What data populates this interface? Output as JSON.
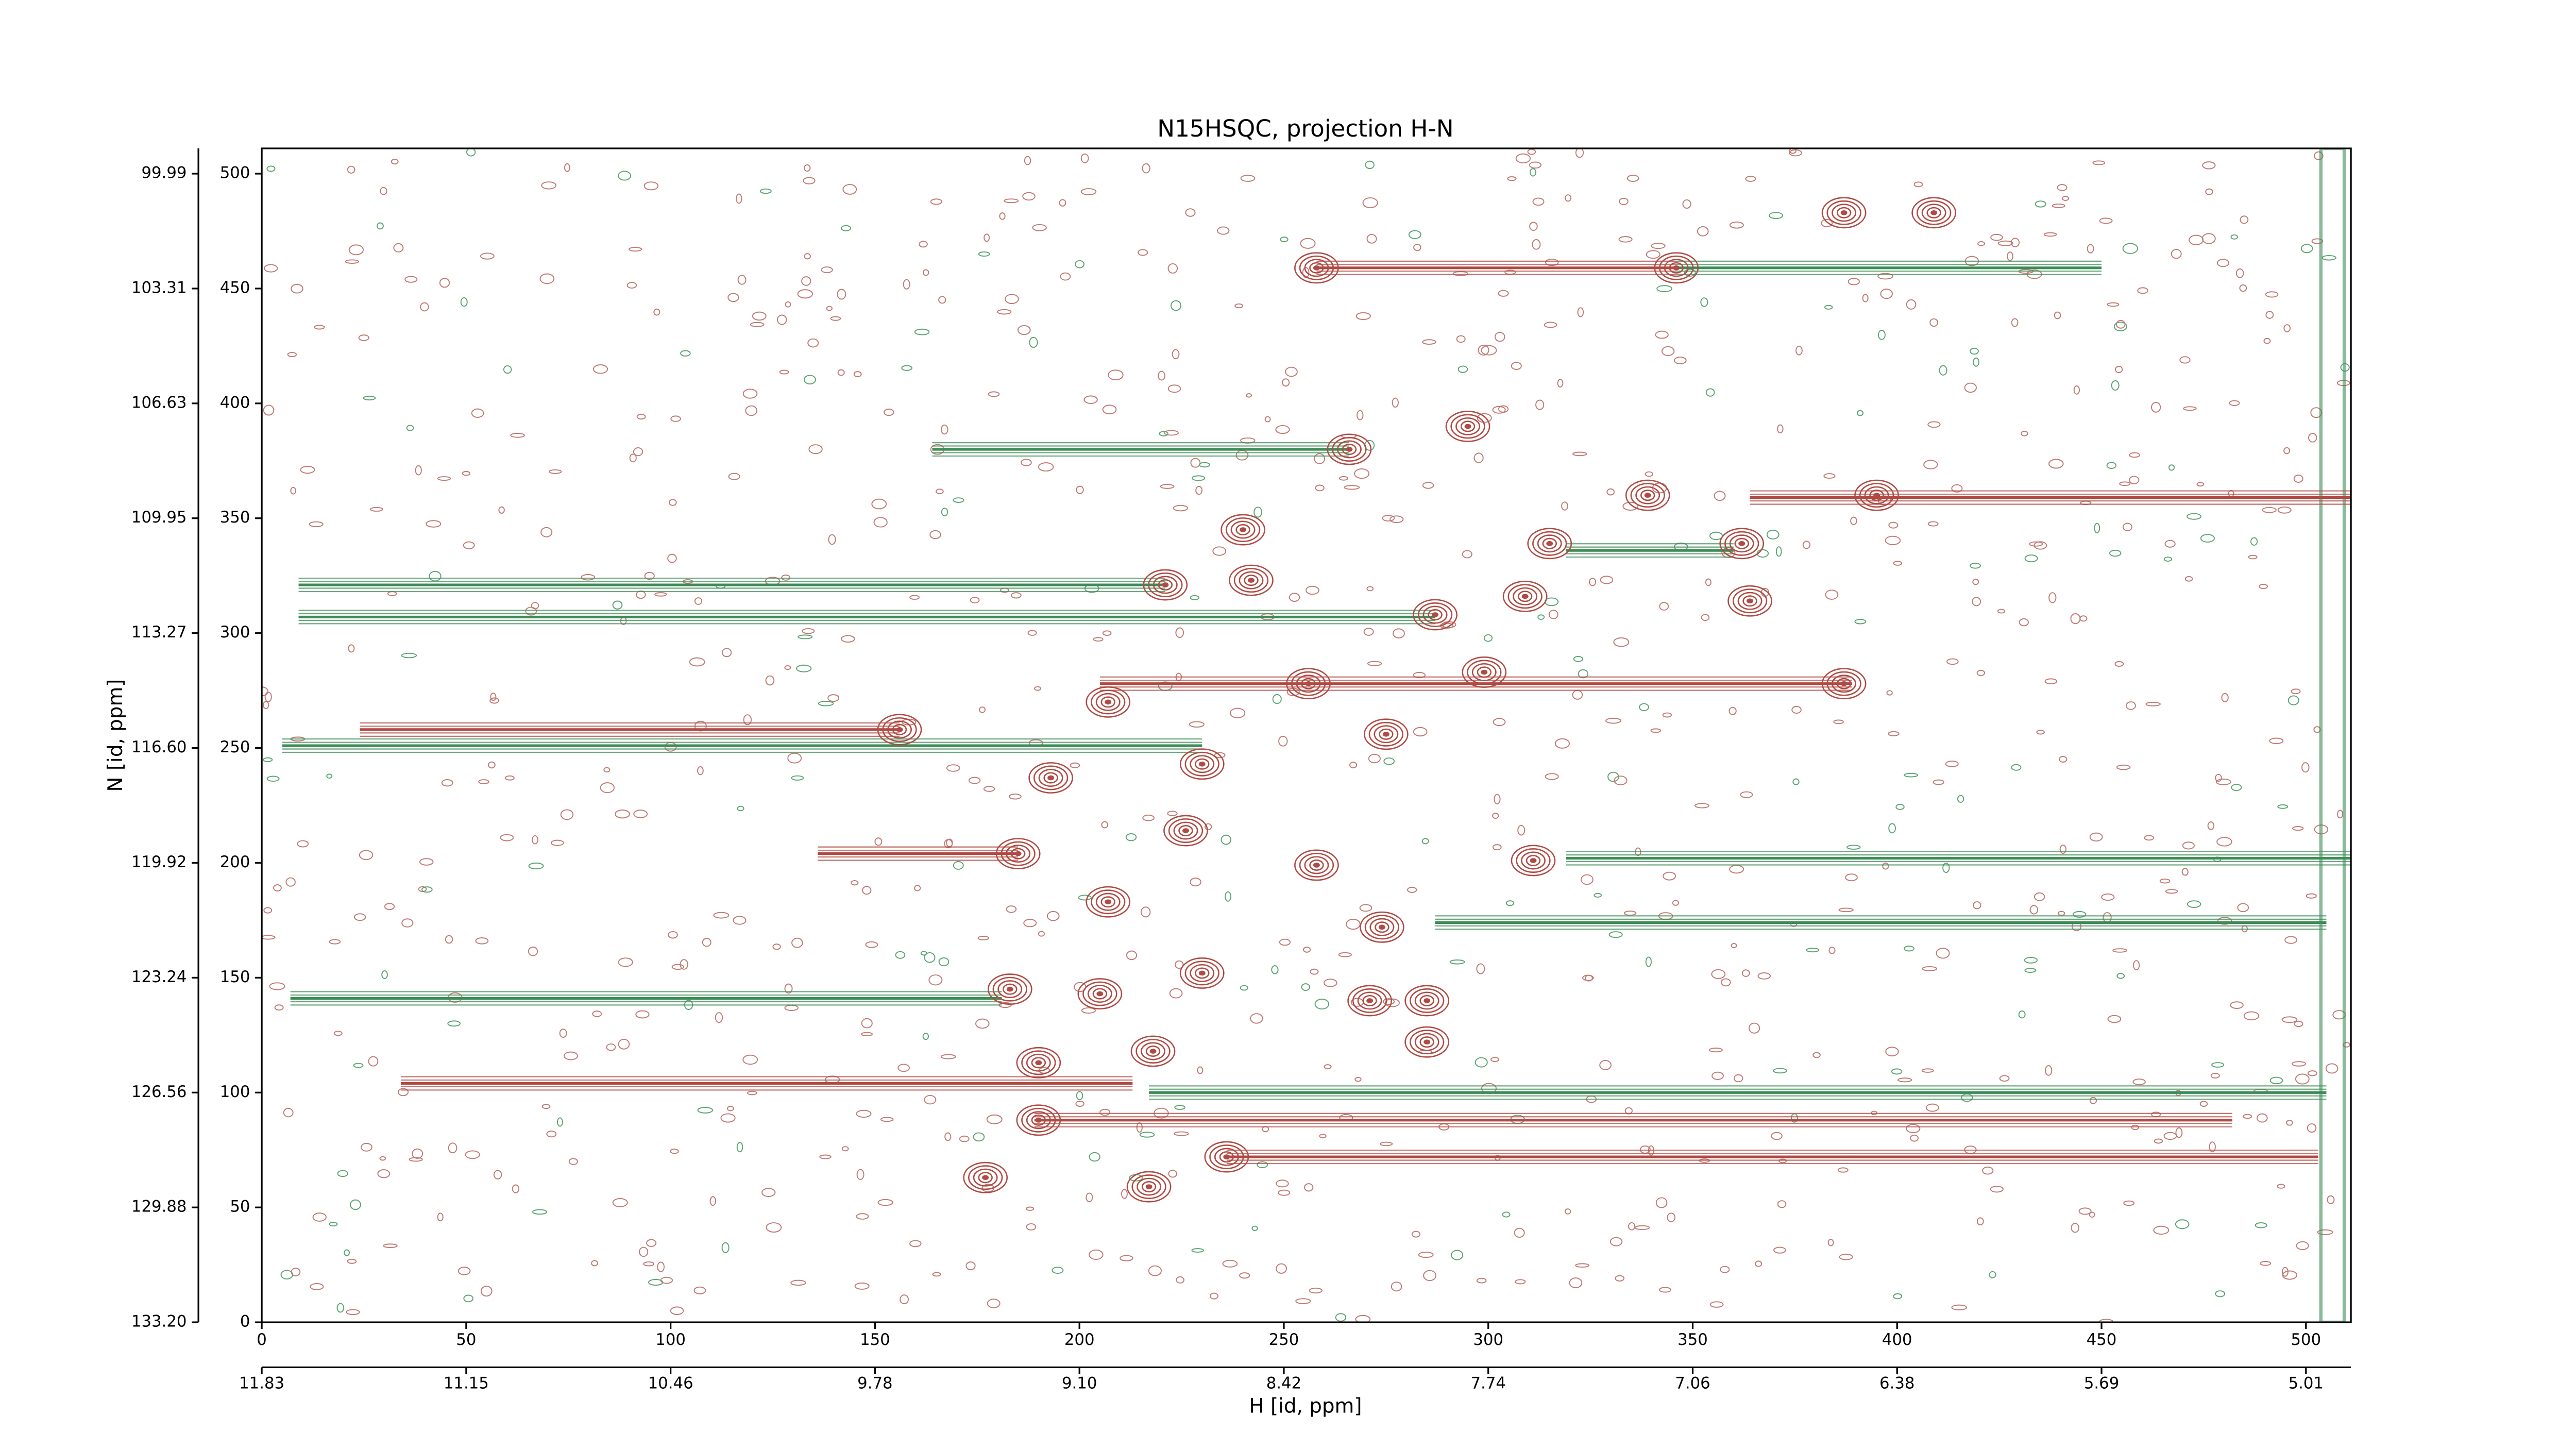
{
  "chart_data": {
    "type": "contour",
    "title": "N15HSQC, projection H-N",
    "xlabel": "H [id, ppm]",
    "ylabel": "N [id, ppm]",
    "xlim": [
      0,
      511
    ],
    "ylim": [
      0,
      511
    ],
    "xticks": [
      0,
      50,
      100,
      150,
      200,
      250,
      300,
      350,
      400,
      450,
      500
    ],
    "yticks": [
      0,
      50,
      100,
      150,
      200,
      250,
      300,
      350,
      400,
      450,
      500
    ],
    "x2ticks": [
      {
        "value": 0,
        "label": "11.83"
      },
      {
        "value": 50,
        "label": "11.15"
      },
      {
        "value": 100,
        "label": "10.46"
      },
      {
        "value": 150,
        "label": "9.78"
      },
      {
        "value": 200,
        "label": "9.10"
      },
      {
        "value": 250,
        "label": "8.42"
      },
      {
        "value": 300,
        "label": "7.74"
      },
      {
        "value": 350,
        "label": "7.06"
      },
      {
        "value": 400,
        "label": "6.38"
      },
      {
        "value": 450,
        "label": "5.69"
      },
      {
        "value": 500,
        "label": "5.01"
      }
    ],
    "y2ticks": [
      {
        "value": 0,
        "label": "133.20"
      },
      {
        "value": 50,
        "label": "129.88"
      },
      {
        "value": 100,
        "label": "126.56"
      },
      {
        "value": 150,
        "label": "123.24"
      },
      {
        "value": 200,
        "label": "119.92"
      },
      {
        "value": 250,
        "label": "116.60"
      },
      {
        "value": 300,
        "label": "113.27"
      },
      {
        "value": 350,
        "label": "109.95"
      },
      {
        "value": 400,
        "label": "106.63"
      },
      {
        "value": 450,
        "label": "103.31"
      },
      {
        "value": 500,
        "label": "99.99"
      }
    ],
    "streaks": [
      {
        "color": "#3c8c55",
        "x": [
          9,
          221
        ],
        "y": 321
      },
      {
        "color": "#3c8c55",
        "x": [
          9,
          287
        ],
        "y": 307
      },
      {
        "color": "#3c8c55",
        "x": [
          164,
          266
        ],
        "y": 380
      },
      {
        "color": "#3c8c55",
        "x": [
          5,
          230
        ],
        "y": 251
      },
      {
        "color": "#3c8c55",
        "x": [
          7,
          181
        ],
        "y": 141
      },
      {
        "color": "#3c8c55",
        "x": [
          346,
          450
        ],
        "y": 459
      },
      {
        "color": "#3c8c55",
        "x": [
          319,
          511
        ],
        "y": 202
      },
      {
        "color": "#3c8c55",
        "x": [
          217,
          505
        ],
        "y": 100
      },
      {
        "color": "#3c8c55",
        "x": [
          287,
          505
        ],
        "y": 174
      },
      {
        "color": "#3c8c55",
        "x": [
          319,
          360
        ],
        "y": 336
      },
      {
        "color": "#b04a43",
        "x": [
          24,
          156
        ],
        "y": 258
      },
      {
        "color": "#b04a43",
        "x": [
          34,
          213
        ],
        "y": 104
      },
      {
        "color": "#b04a43",
        "x": [
          364,
          511
        ],
        "y": 359
      },
      {
        "color": "#b04a43",
        "x": [
          189,
          482
        ],
        "y": 88
      },
      {
        "color": "#b04a43",
        "x": [
          236,
          503
        ],
        "y": 72
      },
      {
        "color": "#b04a43",
        "x": [
          205,
          389
        ],
        "y": 278
      },
      {
        "color": "#b04a43",
        "x": [
          136,
          185
        ],
        "y": 204
      },
      {
        "color": "#b04a43",
        "x": [
          258,
          346
        ],
        "y": 459
      }
    ],
    "peaks": {
      "color": "#b04a43",
      "x": [
        258,
        346,
        387,
        409,
        266,
        295,
        339,
        395,
        240,
        362,
        315,
        221,
        242,
        309,
        287,
        364,
        387,
        299,
        207,
        156,
        256,
        193,
        230,
        275,
        185,
        258,
        311,
        226,
        207,
        274,
        183,
        205,
        230,
        271,
        285,
        190,
        218,
        285,
        190,
        236,
        177,
        217
      ],
      "y": [
        459,
        459,
        483,
        483,
        380,
        390,
        360,
        360,
        345,
        339,
        339,
        321,
        323,
        316,
        308,
        314,
        278,
        283,
        270,
        258,
        278,
        237,
        243,
        256,
        204,
        199,
        201,
        214,
        183,
        172,
        145,
        143,
        152,
        140,
        140,
        113,
        118,
        122,
        88,
        72,
        63,
        59
      ]
    }
  }
}
